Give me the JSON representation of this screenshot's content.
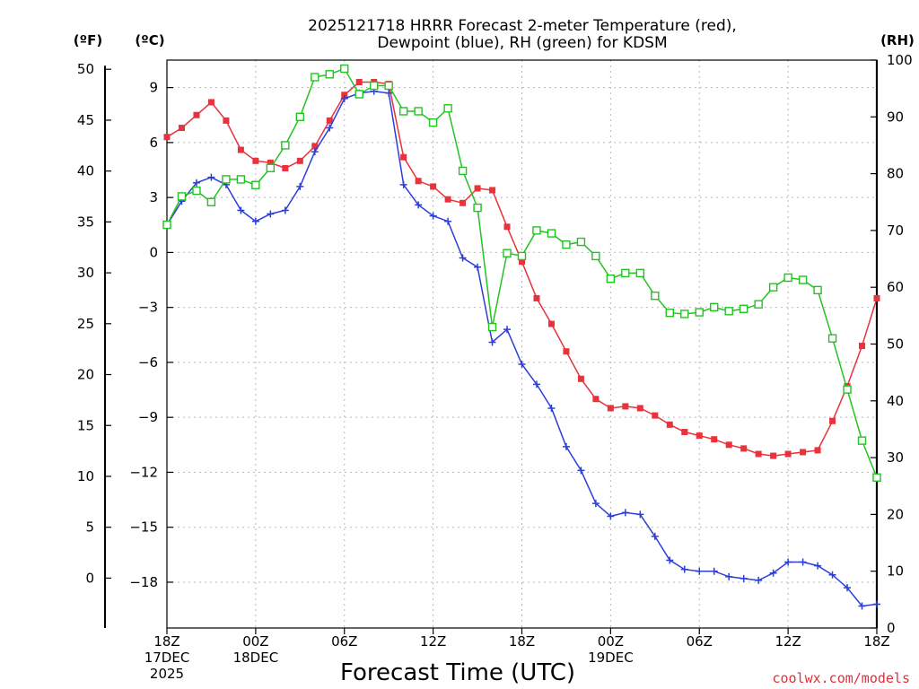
{
  "chart_data": {
    "type": "line",
    "title_line1": "2025121718 HRRR Forecast 2-meter Temperature (red),",
    "title_line2": "Dewpoint (blue), RH (green) for KDSM",
    "xlabel": "Forecast Time (UTC)",
    "credit": "coolwx.com/models",
    "units": {
      "fahrenheit": "(ºF)",
      "celsius": "(ºC)",
      "rh": "(RH)"
    },
    "x_start_hour": 0,
    "x_end_hour": 48,
    "x_ticks": [
      {
        "hour": 0,
        "lines": [
          "18Z",
          "17DEC",
          "2025"
        ]
      },
      {
        "hour": 6,
        "lines": [
          "00Z",
          "18DEC"
        ]
      },
      {
        "hour": 12,
        "lines": [
          "06Z"
        ]
      },
      {
        "hour": 18,
        "lines": [
          "12Z"
        ]
      },
      {
        "hour": 24,
        "lines": [
          "18Z"
        ]
      },
      {
        "hour": 30,
        "lines": [
          "00Z",
          "19DEC"
        ]
      },
      {
        "hour": 36,
        "lines": [
          "06Z"
        ]
      },
      {
        "hour": 42,
        "lines": [
          "12Z"
        ]
      },
      {
        "hour": 48,
        "lines": [
          "18Z"
        ]
      }
    ],
    "y_left_c": {
      "ylim": [
        -20.5,
        10.5
      ],
      "ticks": [
        9,
        6,
        3,
        0,
        -3,
        -6,
        -9,
        -12,
        -15,
        -18
      ]
    },
    "y_left_f": {
      "ylim": [
        -4.9,
        50.9
      ],
      "ticks": [
        50,
        45,
        40,
        35,
        30,
        25,
        20,
        15,
        10,
        5,
        0
      ]
    },
    "y_right_rh": {
      "ylim": [
        0,
        100
      ],
      "ticks": [
        100,
        90,
        80,
        70,
        60,
        50,
        40,
        30,
        20,
        10,
        0
      ]
    },
    "series": [
      {
        "name": "Temperature",
        "color": "#e8323c",
        "marker": "filled-square",
        "axis": "celsius",
        "values": [
          6.3,
          6.8,
          7.5,
          8.2,
          7.2,
          5.6,
          5.0,
          4.9,
          4.6,
          5.0,
          5.8,
          7.2,
          8.6,
          9.3,
          9.3,
          9.2,
          5.2,
          3.9,
          3.6,
          2.9,
          2.7,
          3.5,
          3.4,
          1.4,
          -0.5,
          -2.5,
          -3.9,
          -5.4,
          -6.9,
          -8.0,
          -8.5,
          -8.4,
          -8.5,
          -8.9,
          -9.4,
          -9.8,
          -10.0,
          -10.2,
          -10.5,
          -10.7,
          -11.0,
          -11.1,
          -11.0,
          -10.9,
          -10.8,
          -9.2,
          -7.3,
          -5.1,
          -2.5
        ]
      },
      {
        "name": "Dewpoint",
        "color": "#2b3fd6",
        "marker": "plus",
        "axis": "celsius",
        "values": [
          1.5,
          2.8,
          3.8,
          4.1,
          3.7,
          2.3,
          1.7,
          2.1,
          2.3,
          3.6,
          5.5,
          6.8,
          8.4,
          8.7,
          8.8,
          8.7,
          3.7,
          2.6,
          2.0,
          1.7,
          -0.3,
          -0.8,
          -4.9,
          -4.2,
          -6.1,
          -7.2,
          -8.5,
          -10.6,
          -11.9,
          -13.7,
          -14.4,
          -14.2,
          -14.3,
          -15.5,
          -16.8,
          -17.3,
          -17.4,
          -17.4,
          -17.7,
          -17.8,
          -17.9,
          -17.5,
          -16.9,
          -16.9,
          -17.1,
          -17.6,
          -18.3,
          -19.3,
          -19.2
        ]
      },
      {
        "name": "RH",
        "color": "#22c322",
        "marker": "open-square",
        "axis": "rh",
        "values": [
          71,
          76,
          77,
          75,
          79,
          79,
          78,
          81,
          85,
          90,
          97,
          97.5,
          98.5,
          94,
          95.5,
          95.5,
          91,
          91,
          89,
          91.5,
          80.5,
          74,
          53,
          66,
          65.5,
          70,
          69.5,
          67.5,
          68,
          65.5,
          61.5,
          62.5,
          62.5,
          58.5,
          55.5,
          55.3,
          55.6,
          56.5,
          55.8,
          56.2,
          57,
          60,
          61.7,
          61.3,
          59.5,
          51,
          42,
          33,
          26.5
        ]
      }
    ]
  }
}
